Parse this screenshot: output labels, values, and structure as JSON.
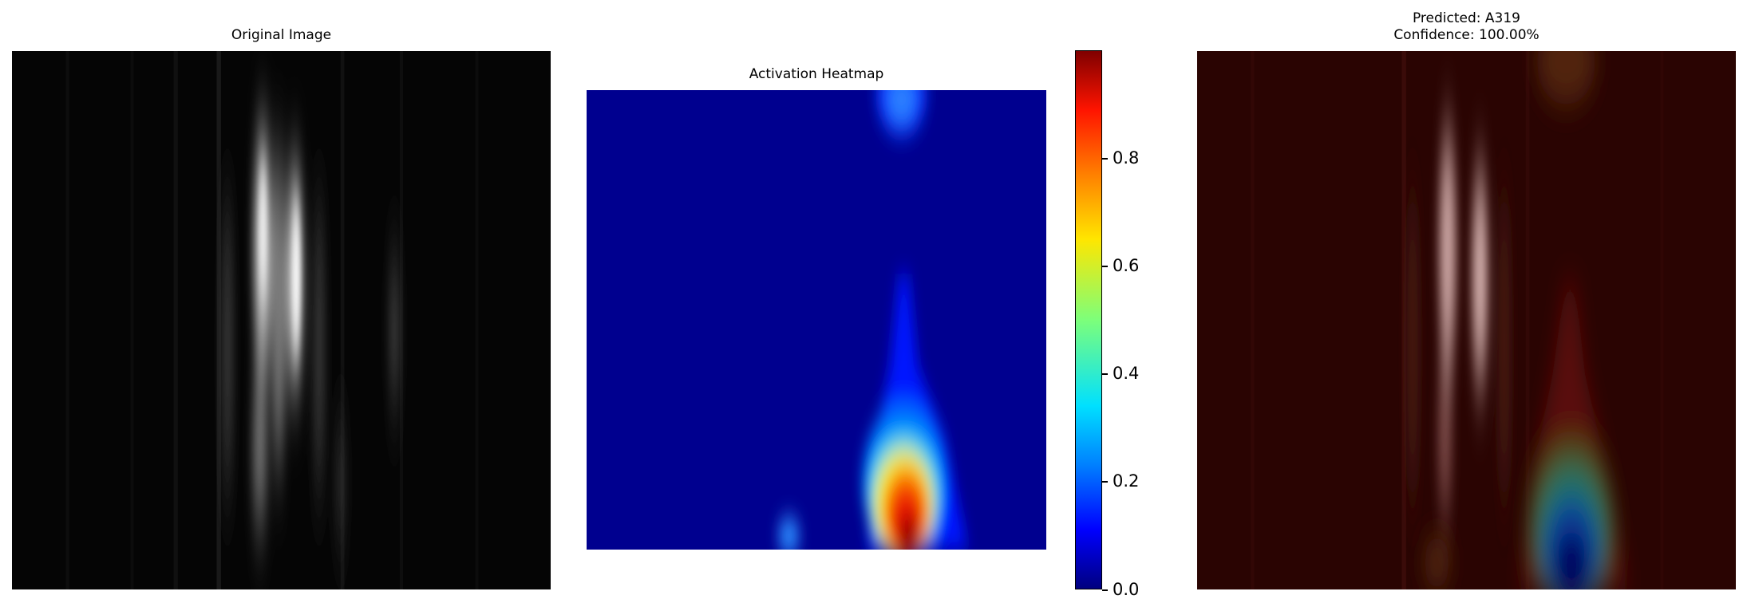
{
  "panels": {
    "original": {
      "title": "Original Image"
    },
    "heatmap": {
      "title": "Activation Heatmap"
    },
    "overlay": {
      "title_line1": "Predicted: A319",
      "title_line2": "Confidence: 100.00%"
    }
  },
  "chart_data": [
    {
      "type": "heatmap",
      "title": "Original Image",
      "colormap": "gray",
      "axes": "off"
    },
    {
      "type": "heatmap",
      "title": "Activation Heatmap",
      "colormap": "jet",
      "axes": "off",
      "colorbar": {
        "range": [
          0.0,
          1.0
        ],
        "ticks": [
          0.0,
          0.2,
          0.4,
          0.6,
          0.8
        ],
        "tick_labels": [
          "0.0",
          "0.2",
          "0.4",
          "0.6",
          "0.8"
        ]
      }
    },
    {
      "type": "heatmap",
      "title": "Predicted: A319\nConfidence: 100.00%",
      "colormap": "jet overlay on image",
      "axes": "off"
    }
  ]
}
